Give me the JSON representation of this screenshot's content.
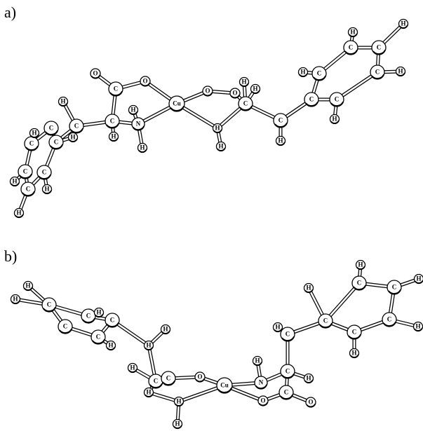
{
  "panels": [
    {
      "label": "a)",
      "atoms": [
        "O",
        "C",
        "O",
        "C",
        "H",
        "H",
        "N",
        "H",
        "Cu",
        "O",
        "O",
        "H",
        "H",
        "C",
        "H",
        "H",
        "C",
        "H",
        "C",
        "C",
        "H",
        "C",
        "H",
        "C",
        "H",
        "C",
        "H",
        "C",
        "H",
        "C",
        "C",
        "H",
        "C",
        "C",
        "C",
        "C",
        "C",
        "H",
        "H",
        "H",
        "H",
        "H"
      ]
    },
    {
      "label": "b)",
      "atoms": [
        "H",
        "C",
        "H",
        "C",
        "C",
        "H",
        "C",
        "C",
        "H",
        "H",
        "H",
        "C",
        "H",
        "C",
        "H",
        "H",
        "H",
        "O",
        "Cu",
        "N",
        "H",
        "O",
        "C",
        "O",
        "C",
        "H",
        "C",
        "H",
        "C",
        "H",
        "C",
        "H",
        "C",
        "H",
        "C",
        "H",
        "C",
        "H"
      ]
    }
  ]
}
